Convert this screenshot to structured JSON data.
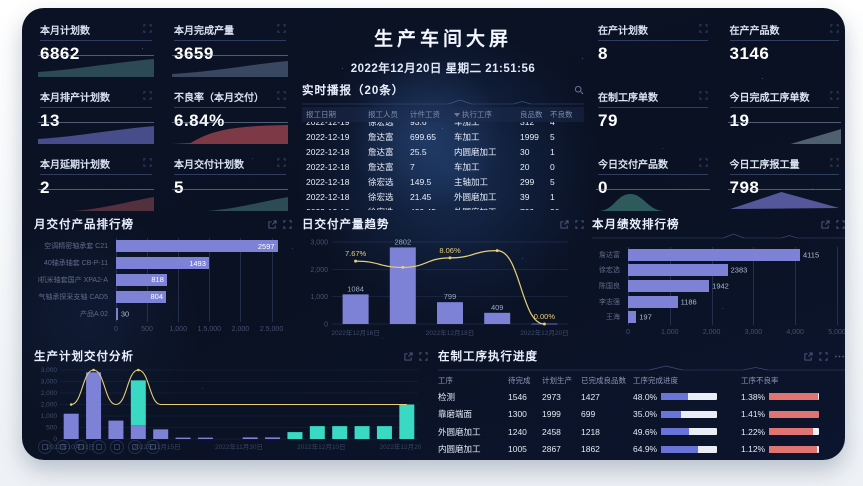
{
  "title": "生产车间大屏",
  "datetime": "2022年12月20日 星期二 21:51:56",
  "colors": {
    "bar_purple": "#7d82d6",
    "bar_teal": "#3ad9c3",
    "line_yellow": "#e7cf72",
    "bad_red": "#df7473",
    "progress_blue": "#6a74d8",
    "progress_track": "#e9edf5",
    "background": "#0b1226"
  },
  "kpi_left": [
    {
      "label": "本月计划数",
      "value": "6862",
      "spark": "rise",
      "spark_color": "#2c4a55"
    },
    {
      "label": "本月完成产量",
      "value": "3659",
      "spark": "rise2",
      "spark_color": "#3a4761"
    },
    {
      "label": "本月排产计划数",
      "value": "13",
      "spark": "rise",
      "spark_color": "#474c8a"
    },
    {
      "label": "不良率（本月交付）",
      "value": "6.84%",
      "spark": "plateau",
      "spark_color": "#7d3a46"
    },
    {
      "label": "本月延期计划数",
      "value": "2",
      "spark": "smallrise",
      "spark_color": "#52303e"
    },
    {
      "label": "本月交付计划数",
      "value": "5",
      "spark": "smallrise",
      "spark_color": "#2c4b52"
    }
  ],
  "kpi_right": [
    {
      "label": "在产计划数",
      "value": "8",
      "spark": null,
      "spark_color": null
    },
    {
      "label": "在产产品数",
      "value": "3146",
      "spark": null,
      "spark_color": null
    },
    {
      "label": "在制工序单数",
      "value": "79",
      "spark": null,
      "spark_color": null
    },
    {
      "label": "今日完成工序单数",
      "value": "19",
      "spark": "triright",
      "spark_color": "#4f6170"
    },
    {
      "label": "今日交付产品数",
      "value": "0",
      "spark": "bell",
      "spark_color": "#2e5a5c"
    },
    {
      "label": "今日工序报工量",
      "value": "798",
      "spark": "tri",
      "spark_color": "#54589a"
    }
  ],
  "realtime": {
    "title": "实时播报（20条）",
    "columns": [
      "报工日期",
      "报工人员",
      "计件工资",
      "执行工序",
      "良品数",
      "不良数"
    ],
    "rows": [
      [
        "2022-12-19",
        "徐宏选",
        "93.6",
        "车加工",
        "312",
        "4"
      ],
      [
        "2022-12-19",
        "詹达富",
        "699.65",
        "车加工",
        "1999",
        "5"
      ],
      [
        "2022-12-18",
        "詹达富",
        "25.5",
        "内圆磨加工",
        "30",
        "1"
      ],
      [
        "2022-12-18",
        "詹达富",
        "7",
        "车加工",
        "20",
        "0"
      ],
      [
        "2022-12-18",
        "徐宏选",
        "149.5",
        "主轴加工",
        "299",
        "5"
      ],
      [
        "2022-12-18",
        "徐宏选",
        "21.45",
        "外圆磨加工",
        "39",
        "1"
      ],
      [
        "2022-12-18",
        "徐宏选",
        "439.45",
        "外圆磨加工",
        "799",
        "30"
      ],
      [
        "2022-12-18",
        "徐宏选",
        "552.75",
        "外圆磨加工",
        "1005",
        "30"
      ]
    ]
  },
  "chart_data": [
    {
      "id": "product_rank",
      "type": "bar",
      "orientation": "horizontal",
      "title": "月交付产品排行榜",
      "categories": [
        "空调精密轴承套 C21",
        "40轴承轴套 CB-P-11",
        "40机米轴套国产 XPA2-A",
        "电气轴承探采支轴 CAD5",
        "产品A 02"
      ],
      "values": [
        2597,
        1493,
        818,
        804,
        30
      ],
      "xlim": [
        0,
        2700
      ],
      "xticks": [
        0,
        500,
        1000,
        1500,
        2000,
        2500
      ]
    },
    {
      "id": "daily_trend",
      "type": "bar+line",
      "title": "日交付产量趋势",
      "x": [
        "2022年12月16日",
        "2022年12月17日",
        "2022年12月18日",
        "2022年12月19日",
        "2022年12月20日"
      ],
      "x_visible": [
        0,
        2,
        4
      ],
      "bars": [
        1084,
        2802,
        799,
        409,
        14
      ],
      "line_pct": [
        7.67,
        6.9,
        8.06,
        8.95,
        0
      ],
      "line_labels": {
        "0": "7.67%",
        "2": "8.06%",
        "4": "0.00%"
      },
      "ylim": [
        0,
        3000
      ],
      "yticks": [
        0,
        1000,
        2000,
        3000
      ],
      "line_ylim": [
        0,
        10
      ]
    },
    {
      "id": "perf_rank",
      "type": "bar",
      "orientation": "horizontal",
      "title": "本月绩效排行榜",
      "categories": [
        "詹达富",
        "徐宏选",
        "陈国良",
        "李志强",
        "王海"
      ],
      "values": [
        4115,
        2383,
        1942,
        1186,
        197
      ],
      "xlim": [
        0,
        5000
      ],
      "xticks": [
        0,
        1000,
        2000,
        3000,
        4000,
        5000
      ]
    },
    {
      "id": "plan_analysis",
      "type": "bar+line",
      "title": "生产计划交付分析",
      "x_labels": [
        "2022年10月31日",
        "2022年11月15日",
        "2022年11月30日",
        "2022年12月10日",
        "2022年12月20日"
      ],
      "values": [
        1100,
        2900,
        800,
        2550,
        420,
        60,
        60,
        0,
        70,
        70,
        300,
        560,
        560,
        560,
        560,
        1500
      ],
      "bar_colors": [
        "purple",
        "purple",
        "purple",
        "stack",
        "purple",
        "purple",
        "purple",
        "purple",
        "purple",
        "purple",
        "teal",
        "teal",
        "teal",
        "teal",
        "teal",
        "teal"
      ],
      "stack_base": 600,
      "line": [
        1500,
        3000,
        1500,
        3000,
        1500,
        1500,
        1500,
        1500,
        1500,
        1500,
        1500,
        1500,
        1500,
        1500,
        1500,
        1500
      ],
      "ylim": [
        0,
        3000
      ],
      "yticks": [
        0,
        500,
        1000,
        1500,
        2000,
        2500,
        3000
      ]
    }
  ],
  "progress": {
    "title": "在制工序执行进度",
    "columns": [
      "工序",
      "待完成",
      "计划生产",
      "已完成良品数",
      "工序完成进度",
      "工序不良率"
    ],
    "rows": [
      {
        "process": "检测",
        "pending": "1546",
        "planned": "2973",
        "good": "1427",
        "progress": "48.0%",
        "progress_pct": 48,
        "bad_rate": "1.38%",
        "bad_fill": 97
      },
      {
        "process": "靠磨端面",
        "pending": "1300",
        "planned": "1999",
        "good": "699",
        "progress": "35.0%",
        "progress_pct": 35,
        "bad_rate": "1.41%",
        "bad_fill": 100
      },
      {
        "process": "外圆磨加工",
        "pending": "1240",
        "planned": "2458",
        "good": "1218",
        "progress": "49.6%",
        "progress_pct": 50,
        "bad_rate": "1.22%",
        "bad_fill": 88
      },
      {
        "process": "内圆磨加工",
        "pending": "1005",
        "planned": "2867",
        "good": "1862",
        "progress": "64.9%",
        "progress_pct": 65,
        "bad_rate": "1.12%",
        "bad_fill": 95
      }
    ]
  },
  "icons": {
    "panel": [
      "share-icon",
      "fullscreen-icon"
    ],
    "progress_extra": "more-icon",
    "realtime": "search-icon",
    "kpi_corner": "fullscreen-icon",
    "overlay": [
      "history-icon",
      "record-icon",
      "edit-icon",
      "user-icon",
      "mail-icon",
      "target-icon",
      "crop-icon"
    ]
  }
}
